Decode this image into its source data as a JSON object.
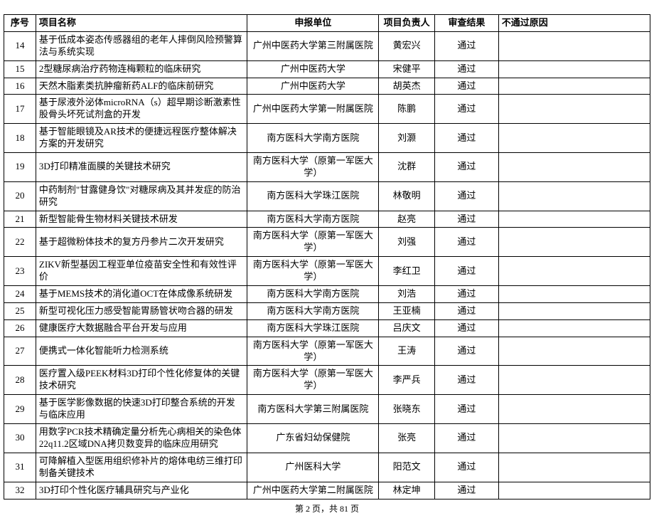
{
  "table": {
    "columns": [
      "序号",
      "项目名称",
      "申报单位",
      "项目负责人",
      "审查结果",
      "不通过原因"
    ],
    "rows": [
      [
        "14",
        "基于低成本姿态传感器组的老年人摔倒风险预警算法与系统实现",
        "广州中医药大学第三附属医院",
        "黄宏兴",
        "通过",
        ""
      ],
      [
        "15",
        "2型糖尿病治疗药物连梅颗粒的临床研究",
        "广州中医药大学",
        "宋健平",
        "通过",
        ""
      ],
      [
        "16",
        "天然木脂素类抗肿瘤新药ALF的临床前研究",
        "广州中医药大学",
        "胡英杰",
        "通过",
        ""
      ],
      [
        "17",
        "基于尿液外泌体microRNA（s）超早期诊断激素性股骨头坏死试剂盒的开发",
        "广州中医药大学第一附属医院",
        "陈鹏",
        "通过",
        ""
      ],
      [
        "18",
        "基于智能眼镜及AR技术的便捷远程医疗整体解决方案的开发研究",
        "南方医科大学南方医院",
        "刘灏",
        "通过",
        ""
      ],
      [
        "19",
        "3D打印精准面膜的关键技术研究",
        "南方医科大学（原第一军医大学）",
        "沈群",
        "通过",
        ""
      ],
      [
        "20",
        "中药制剂\"甘露健身饮\"对糖尿病及其并发症的防治研究",
        "南方医科大学珠江医院",
        "林敬明",
        "通过",
        ""
      ],
      [
        "21",
        "新型智能骨生物材料关键技术研发",
        "南方医科大学南方医院",
        "赵亮",
        "通过",
        ""
      ],
      [
        "22",
        "基于超微粉体技术的复方丹参片二次开发研究",
        "南方医科大学（原第一军医大学）",
        "刘强",
        "通过",
        ""
      ],
      [
        "23",
        "ZIKV新型基因工程亚单位疫苗安全性和有效性评价",
        "南方医科大学（原第一军医大学）",
        "李红卫",
        "通过",
        ""
      ],
      [
        "24",
        "基于MEMS技术的消化道OCT在体成像系统研发",
        "南方医科大学南方医院",
        "刘浩",
        "通过",
        ""
      ],
      [
        "25",
        "新型可视化压力感受智能胃肠管状吻合器的研发",
        "南方医科大学南方医院",
        "王亚楠",
        "通过",
        ""
      ],
      [
        "26",
        "健康医疗大数据融合平台开发与应用",
        "南方医科大学珠江医院",
        "吕庆文",
        "通过",
        ""
      ],
      [
        "27",
        "便携式一体化智能听力检测系统",
        "南方医科大学（原第一军医大学）",
        "王涛",
        "通过",
        ""
      ],
      [
        "28",
        "医疗置入级PEEK材料3D打印个性化修复体的关键技术研究",
        "南方医科大学（原第一军医大学）",
        "李严兵",
        "通过",
        ""
      ],
      [
        "29",
        "基于医学影像数据的快速3D打印整合系统的开发与临床应用",
        "南方医科大学第三附属医院",
        "张晓东",
        "通过",
        ""
      ],
      [
        "30",
        "用数字PCR技术精确定量分析先心病相关的染色体22q11.2区域DNA拷贝数变异的临床应用研究",
        "广东省妇幼保健院",
        "张亮",
        "通过",
        ""
      ],
      [
        "31",
        "可降解植入型医用组织修补片的熔体电纺三维打印制备关键技术",
        "广州医科大学",
        "阳范文",
        "通过",
        ""
      ],
      [
        "32",
        "3D打印个性化医疗辅具研究与产业化",
        "广州中医药大学第二附属医院",
        "林定坤",
        "通过",
        ""
      ]
    ]
  },
  "footer": {
    "page_current": "2",
    "page_total": "81",
    "prefix": "第 ",
    "middle": " 页，共 ",
    "suffix": " 页"
  }
}
